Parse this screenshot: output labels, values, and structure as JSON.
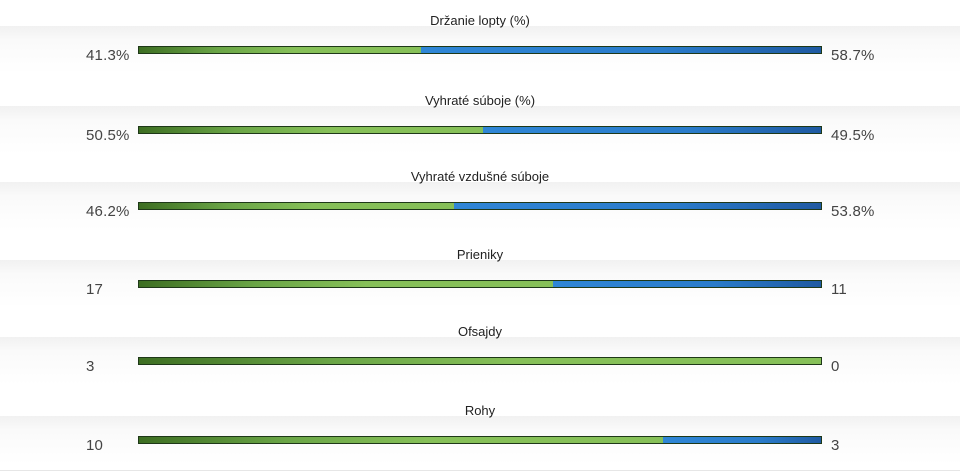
{
  "stats": [
    {
      "label": "Držanie lopty (%)",
      "home": "41.3%",
      "away": "58.7%",
      "home_share": 0.413
    },
    {
      "label": "Vyhraté súboje (%)",
      "home": "50.5%",
      "away": "49.5%",
      "home_share": 0.505
    },
    {
      "label": "Vyhraté vzdušné súboje",
      "home": "46.2%",
      "away": "53.8%",
      "home_share": 0.462
    },
    {
      "label": "Prieniky",
      "home": "17",
      "away": "11",
      "home_share": 0.607
    },
    {
      "label": "Ofsajdy",
      "home": "3",
      "away": "0",
      "home_share": 1.0
    },
    {
      "label": "Rohy",
      "home": "10",
      "away": "3",
      "home_share": 0.769
    }
  ],
  "colors": {
    "home_bar": "#86c058",
    "away_bar": "#2b73c2"
  }
}
